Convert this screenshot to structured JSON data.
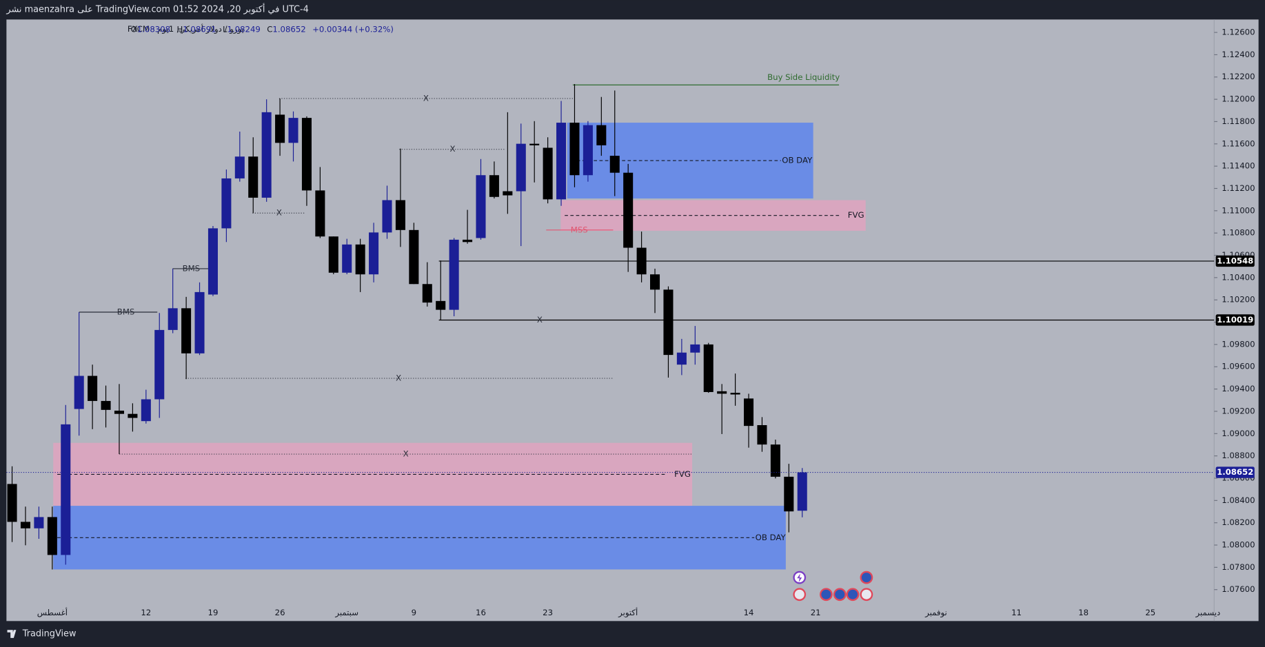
{
  "header": {
    "title": "نشر maenzahra على TradingView.com في أكتوبر 20, 2024 01:52 UTC-4"
  },
  "footer": {
    "brand": "TradingView"
  },
  "chart_data": {
    "type": "candlestick",
    "symbol": "يورو / دولار أمريكي, 1يوم · FXCM",
    "ohlc_labels": [
      "O",
      "H",
      "L",
      "C"
    ],
    "change_label": "+0.00344 (+0.32%)",
    "up_color": "#1b1f96",
    "down_color": "#000000",
    "grid": false,
    "ylim": [
      1.07318,
      1.12716
    ],
    "yticks": [
      {
        "value": 1.076,
        "label": "1.07600"
      },
      {
        "value": 1.078,
        "label": "1.07800"
      },
      {
        "value": 1.08,
        "label": "1.08000"
      },
      {
        "value": 1.082,
        "label": "1.08200"
      },
      {
        "value": 1.084,
        "label": "1.08400"
      },
      {
        "value": 1.086,
        "label": "1.08600"
      },
      {
        "value": 1.088,
        "label": "1.08800"
      },
      {
        "value": 1.09,
        "label": "1.09000"
      },
      {
        "value": 1.092,
        "label": "1.09200"
      },
      {
        "value": 1.094,
        "label": "1.09400"
      },
      {
        "value": 1.096,
        "label": "1.09600"
      },
      {
        "value": 1.098,
        "label": "1.09800"
      },
      {
        "value": 1.1,
        "label": "1.10000"
      },
      {
        "value": 1.102,
        "label": "1.10200"
      },
      {
        "value": 1.104,
        "label": "1.10400"
      },
      {
        "value": 1.106,
        "label": "1.10600"
      },
      {
        "value": 1.108,
        "label": "1.10800"
      },
      {
        "value": 1.11,
        "label": "1.11000"
      },
      {
        "value": 1.112,
        "label": "1.11200"
      },
      {
        "value": 1.114,
        "label": "1.11400"
      },
      {
        "value": 1.116,
        "label": "1.11600"
      },
      {
        "value": 1.118,
        "label": "1.11800"
      },
      {
        "value": 1.12,
        "label": "1.12000"
      },
      {
        "value": 1.122,
        "label": "1.12200"
      },
      {
        "value": 1.124,
        "label": "1.12400"
      },
      {
        "value": 1.126,
        "label": "1.12600"
      }
    ],
    "categories": [
      null,
      null,
      null,
      "أغسطس",
      null,
      null,
      null,
      null,
      null,
      null,
      "12",
      null,
      null,
      null,
      null,
      "19",
      null,
      null,
      null,
      null,
      "26",
      null,
      null,
      null,
      null,
      "سبتمبر",
      null,
      null,
      null,
      null,
      "9",
      null,
      null,
      null,
      null,
      "16",
      null,
      null,
      null,
      null,
      "23",
      null,
      null,
      null,
      null,
      null,
      "أكتوبر",
      null,
      null,
      null,
      null,
      null,
      null,
      null,
      null,
      "14",
      null,
      null,
      null,
      null
    ],
    "future_ticks": [
      "21",
      "نوفمبر",
      "11",
      "18",
      "25",
      "ديسمبر"
    ],
    "series": {
      "open": [
        1.08548,
        1.08208,
        1.0815,
        1.08251,
        1.07911,
        1.09221,
        1.09518,
        1.09293,
        1.09206,
        1.09177,
        1.09112,
        1.09308,
        1.0993,
        1.10125,
        1.0972,
        1.10248,
        1.10842,
        1.1129,
        1.11486,
        1.11117,
        1.11862,
        1.11609,
        1.11833,
        1.11182,
        1.10769,
        1.10444,
        1.10697,
        1.10429,
        1.10805,
        1.11095,
        1.10827,
        1.10342,
        1.1019,
        1.10111,
        1.1074,
        1.10755,
        1.11319,
        1.11175,
        1.11175,
        1.11601,
        1.11565,
        1.11102,
        1.1179,
        1.11319,
        1.11768,
        1.11493,
        1.11341,
        1.10668,
        1.10429,
        1.10292,
        1.09619,
        1.09727,
        1.098,
        1.0938,
        1.09366,
        1.09315,
        1.09076,
        1.08902,
        1.08613,
        1.08308
      ],
      "high": [
        1.08707,
        1.08345,
        1.08345,
        1.08345,
        1.09257,
        1.1009,
        1.09619,
        1.09431,
        1.09445,
        1.09272,
        1.09394,
        1.10082,
        1.1048,
        1.10227,
        1.10357,
        1.10863,
        1.1137,
        1.1171,
        1.11659,
        1.12,
        1.12007,
        1.11891,
        1.11847,
        1.11392,
        1.10769,
        1.10748,
        1.10748,
        1.10892,
        1.11225,
        1.11558,
        1.10892,
        1.10538,
        1.10553,
        1.10755,
        1.11008,
        1.11464,
        1.11442,
        1.11884,
        1.11782,
        1.11804,
        1.11659,
        1.11985,
        1.12137,
        1.11804,
        1.12021,
        1.12079,
        1.1142,
        1.10813,
        1.1048,
        1.10321,
        1.0985,
        1.09966,
        1.09814,
        1.09445,
        1.09539,
        1.09358,
        1.09148,
        1.08946,
        1.08729,
        1.08691
      ],
      "low": [
        1.08027,
        1.07998,
        1.08056,
        1.07781,
        1.07824,
        1.08982,
        1.0904,
        1.09055,
        1.08816,
        1.09018,
        1.0909,
        1.09141,
        1.09901,
        1.09489,
        1.09705,
        1.10234,
        1.10719,
        1.11261,
        1.10979,
        1.1108,
        1.11493,
        1.11442,
        1.11044,
        1.10755,
        1.1043,
        1.1043,
        1.1027,
        1.10357,
        1.10748,
        1.10675,
        1.10342,
        1.1014,
        1.10017,
        1.10053,
        1.10704,
        1.1074,
        1.1111,
        1.10972,
        1.10683,
        1.11254,
        1.11066,
        1.11044,
        1.11211,
        1.11261,
        1.11493,
        1.11131,
        1.10451,
        1.10357,
        1.10082,
        1.09503,
        1.09525,
        1.09619,
        1.09366,
        1.08996,
        1.0925,
        1.08874,
        1.08837,
        1.08598,
        1.08114,
        1.08249
      ],
      "close": [
        1.08208,
        1.0815,
        1.08251,
        1.07911,
        1.09083,
        1.09518,
        1.09293,
        1.09213,
        1.09177,
        1.09141,
        1.09308,
        1.0993,
        1.10125,
        1.0972,
        1.1027,
        1.10842,
        1.1129,
        1.11486,
        1.11117,
        1.11884,
        1.11609,
        1.11833,
        1.11182,
        1.10769,
        1.10444,
        1.10697,
        1.10429,
        1.10805,
        1.11095,
        1.10827,
        1.10342,
        1.10176,
        1.10111,
        1.1074,
        1.10719,
        1.11319,
        1.11124,
        1.11138,
        1.11601,
        1.11587,
        1.11102,
        1.1179,
        1.11319,
        1.11768,
        1.11587,
        1.11341,
        1.10668,
        1.10429,
        1.10292,
        1.09706,
        1.09727,
        1.098,
        1.09373,
        1.09358,
        1.09351,
        1.09069,
        1.08902,
        1.08613,
        1.08302,
        1.08652
      ]
    },
    "zones": [
      {
        "label": "OB DAY",
        "top": 1.1179,
        "bottom": 1.1111,
        "color": "#6a8ce6"
      },
      {
        "label": "FVG",
        "top": 1.11095,
        "bottom": 1.1082,
        "color": "#d9a6bf"
      },
      {
        "label": "FVG",
        "top": 1.08917,
        "bottom": 1.08352,
        "color": "#d9a6bf"
      },
      {
        "label": "OB DAY",
        "top": 1.08352,
        "bottom": 1.07781,
        "color": "#6a8ce6"
      }
    ],
    "levels": [
      {
        "label": "X",
        "price": 1.12007,
        "style": "dotted",
        "color": "#3a3d48"
      },
      {
        "label": "X",
        "price": 1.11551,
        "style": "dotted",
        "color": "#3a3d48"
      },
      {
        "label": "X",
        "price": 1.10979,
        "style": "dotted",
        "color": "#3a3d48"
      },
      {
        "label": "X",
        "price": 1.09496,
        "style": "dotted",
        "color": "#3a3d48"
      },
      {
        "label": "X",
        "price": 1.08816,
        "style": "dotted",
        "color": "#3a3d48"
      },
      {
        "label": "X",
        "price": 1.10019,
        "style": "solid",
        "color": "#000000",
        "badge": true
      },
      {
        "price": 1.10548,
        "style": "solid",
        "color": "#000000",
        "badge": true
      },
      {
        "label": "BMS",
        "price": 1.1009,
        "style": "solid",
        "color": "#2a2e39"
      },
      {
        "label": "BMS",
        "price": 1.1048,
        "style": "solid",
        "color": "#2a2e39"
      },
      {
        "label": "MSS",
        "price": 1.10827,
        "style": "solid",
        "color": "#e05670"
      },
      {
        "label": "Buy Side Liquidity",
        "price": 1.12129,
        "style": "solid",
        "color": "#2e6b2e"
      }
    ]
  }
}
